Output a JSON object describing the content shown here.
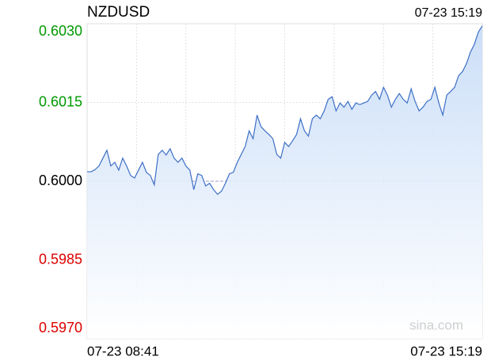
{
  "chart_data": {
    "type": "line",
    "title": "NZDUSD",
    "watermark": "sina.com",
    "categories": [
      "07-23 08:41",
      null,
      null,
      null,
      null,
      null,
      null,
      null,
      null,
      null,
      null,
      null,
      null,
      null,
      null,
      null,
      null,
      null,
      null,
      null,
      null,
      null,
      null,
      null,
      null,
      null,
      null,
      null,
      null,
      null,
      null,
      null,
      null,
      null,
      null,
      null,
      null,
      null,
      null,
      null,
      null,
      null,
      null,
      null,
      null,
      null,
      null,
      null,
      null,
      null,
      null,
      null,
      null,
      null,
      null,
      null,
      null,
      null,
      null,
      null,
      null,
      null,
      null,
      null,
      null,
      null,
      null,
      null,
      null,
      null,
      null,
      null,
      null,
      null,
      null,
      null,
      null,
      null,
      null,
      null,
      null,
      null,
      null,
      null,
      null,
      null,
      null,
      null,
      null,
      null,
      null,
      null,
      null,
      null,
      null,
      null,
      null,
      null,
      null,
      null,
      "07-23 15:19"
    ],
    "series": [
      {
        "name": "NZDUSD",
        "color": "#3d6fc6",
        "values": [
          0.60018,
          0.60018,
          0.60022,
          0.60029,
          0.60044,
          0.60059,
          0.60029,
          0.60036,
          0.60021,
          0.60044,
          0.60029,
          0.60011,
          0.60006,
          0.60021,
          0.60036,
          0.60017,
          0.60011,
          0.59993,
          0.60051,
          0.60059,
          0.6005,
          0.60062,
          0.60044,
          0.60036,
          0.60044,
          0.60029,
          0.60021,
          0.59984,
          0.60014,
          0.60011,
          0.59991,
          0.59996,
          0.59984,
          0.59975,
          0.59981,
          0.59996,
          0.60014,
          0.60017,
          0.60036,
          0.60051,
          0.60066,
          0.60096,
          0.60081,
          0.60126,
          0.60104,
          0.60096,
          0.60089,
          0.60081,
          0.60051,
          0.60044,
          0.60074,
          0.60066,
          0.60077,
          0.60089,
          0.60119,
          0.60096,
          0.60086,
          0.60119,
          0.60126,
          0.60119,
          0.60134,
          0.60156,
          0.60161,
          0.60134,
          0.60149,
          0.60141,
          0.60152,
          0.60137,
          0.60149,
          0.60146,
          0.60149,
          0.60152,
          0.60164,
          0.60171,
          0.60156,
          0.60179,
          0.60164,
          0.60141,
          0.60156,
          0.60167,
          0.60156,
          0.60149,
          0.60176,
          0.60152,
          0.60134,
          0.60141,
          0.60152,
          0.60156,
          0.60179,
          0.60149,
          0.60126,
          0.60164,
          0.60171,
          0.60179,
          0.60201,
          0.60209,
          0.60224,
          0.60246,
          0.60261,
          0.60284,
          0.60296
        ]
      }
    ],
    "ylim": [
      0.597,
      0.603
    ],
    "yticks": [
      {
        "value": 0.597,
        "label": "0.5970"
      },
      {
        "value": 0.5985,
        "label": "0.5985"
      },
      {
        "value": 0.6,
        "label": "0.6000"
      },
      {
        "value": 0.6015,
        "label": "0.6015"
      },
      {
        "value": 0.603,
        "label": "0.6030"
      }
    ],
    "baseline": 0.6,
    "up_color": "#009900",
    "down_color": "#dd0000",
    "grid": true
  }
}
